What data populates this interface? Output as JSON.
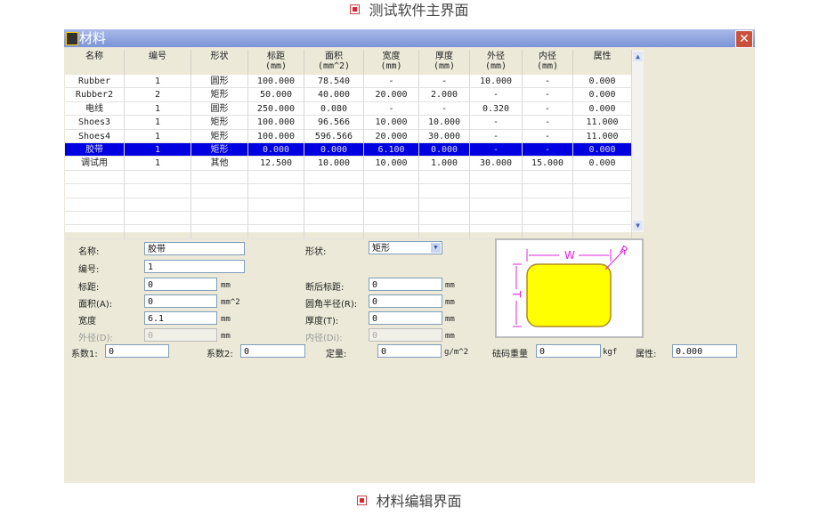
{
  "top_caption": "测试软件主界面",
  "bottom_caption": "材料编辑界面",
  "window": {
    "title": "材料",
    "close": "✕"
  },
  "table": {
    "headers": [
      [
        "名称",
        ""
      ],
      [
        "编号",
        ""
      ],
      [
        "形状",
        ""
      ],
      [
        "标距",
        "(mm)"
      ],
      [
        "面积",
        "(mm^2)"
      ],
      [
        "宽度",
        "(mm)"
      ],
      [
        "厚度",
        "(mm)"
      ],
      [
        "外径",
        "(mm)"
      ],
      [
        "内径",
        "(mm)"
      ],
      [
        "属性",
        ""
      ]
    ],
    "rows": [
      [
        "Rubber",
        "1",
        "圆形",
        "100.000",
        "78.540",
        "-",
        "-",
        "10.000",
        "-",
        "0.000"
      ],
      [
        "Rubber2",
        "2",
        "矩形",
        "50.000",
        "40.000",
        "20.000",
        "2.000",
        "-",
        "-",
        "0.000"
      ],
      [
        "电线",
        "1",
        "圆形",
        "250.000",
        "0.080",
        "-",
        "-",
        "0.320",
        "-",
        "0.000"
      ],
      [
        "Shoes3",
        "1",
        "矩形",
        "100.000",
        "96.566",
        "10.000",
        "10.000",
        "-",
        "-",
        "11.000"
      ],
      [
        "Shoes4",
        "1",
        "矩形",
        "100.000",
        "596.566",
        "20.000",
        "30.000",
        "-",
        "-",
        "11.000"
      ],
      [
        "胶带",
        "1",
        "矩形",
        "0.000",
        "0.000",
        "6.100",
        "0.000",
        "-",
        "-",
        "0.000"
      ],
      [
        "调试用",
        "1",
        "其他",
        "12.500",
        "10.000",
        "10.000",
        "1.000",
        "30.000",
        "15.000",
        "0.000"
      ]
    ],
    "selected_row": 5
  },
  "form": {
    "name": {
      "label": "名称:",
      "value": "胶带"
    },
    "number": {
      "label": "编号:",
      "value": "1"
    },
    "gauge": {
      "label": "标距:",
      "value": "0",
      "unit": "mm"
    },
    "area": {
      "label": "面积(A):",
      "value": "0",
      "unit": "mm^2"
    },
    "width": {
      "label": "宽度",
      "value": "6.1",
      "unit": "mm"
    },
    "outer": {
      "label": "外径(D):",
      "value": "0",
      "unit": "mm"
    },
    "shape": {
      "label": "形状:",
      "value": "矩形"
    },
    "break_gauge": {
      "label": "断后标距:",
      "value": "0",
      "unit": "mm"
    },
    "radius": {
      "label": "圆角半径(R):",
      "value": "0",
      "unit": "mm"
    },
    "thickness": {
      "label": "厚度(T):",
      "value": "0",
      "unit": "mm"
    },
    "inner": {
      "label": "内径(Di):",
      "value": "0",
      "unit": "mm"
    },
    "coef1": {
      "label": "系数1:",
      "value": "0"
    },
    "coef2": {
      "label": "系数2:",
      "value": "0"
    },
    "basis": {
      "label": "定量:",
      "value": "0",
      "unit": "g/m^2"
    },
    "weight": {
      "label": "砝码重量",
      "value": "0",
      "unit": "kgf"
    },
    "attr": {
      "label": "属性:",
      "value": "0.000"
    }
  },
  "diagram": {
    "w_label": "W",
    "r_label": "R",
    "t_label": "T",
    "fill": "#ffff00",
    "stroke": "#e020e0"
  }
}
